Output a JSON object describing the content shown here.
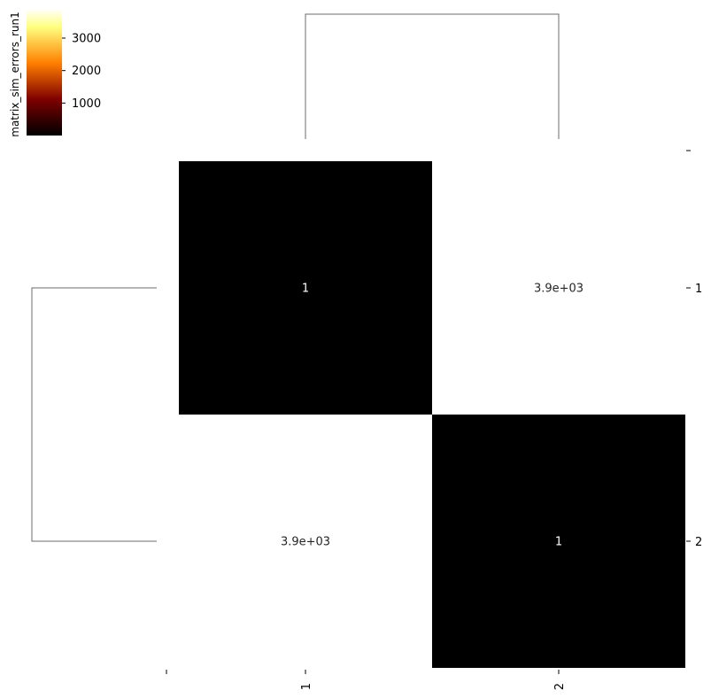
{
  "chart_data": {
    "type": "heatmap",
    "title": "",
    "xlabel": "",
    "ylabel": "",
    "categories": [
      "1",
      "2"
    ],
    "rows": [
      "1",
      "2"
    ],
    "values": [
      [
        1,
        3900
      ],
      [
        3900,
        1
      ]
    ],
    "cell_labels": [
      [
        "1",
        "3.9e+03"
      ],
      [
        "3.9e+03",
        "1"
      ]
    ],
    "colorbar": {
      "label": "matrix_sim_errors_run1",
      "ticks": [
        1000,
        2000,
        3000
      ],
      "tick_labels": [
        "1000",
        "2000",
        "3000"
      ],
      "range": [
        1,
        3900
      ],
      "colormap": "afmhot",
      "stops": [
        "#000000",
        "#3d0000",
        "#7f0000",
        "#bf3f00",
        "#ff7f00",
        "#ffbf3f",
        "#ffff7f",
        "#ffffff"
      ]
    },
    "dendrogram": {
      "column": true,
      "row": true,
      "line_color": "#6b6b6b"
    },
    "grid": false
  }
}
